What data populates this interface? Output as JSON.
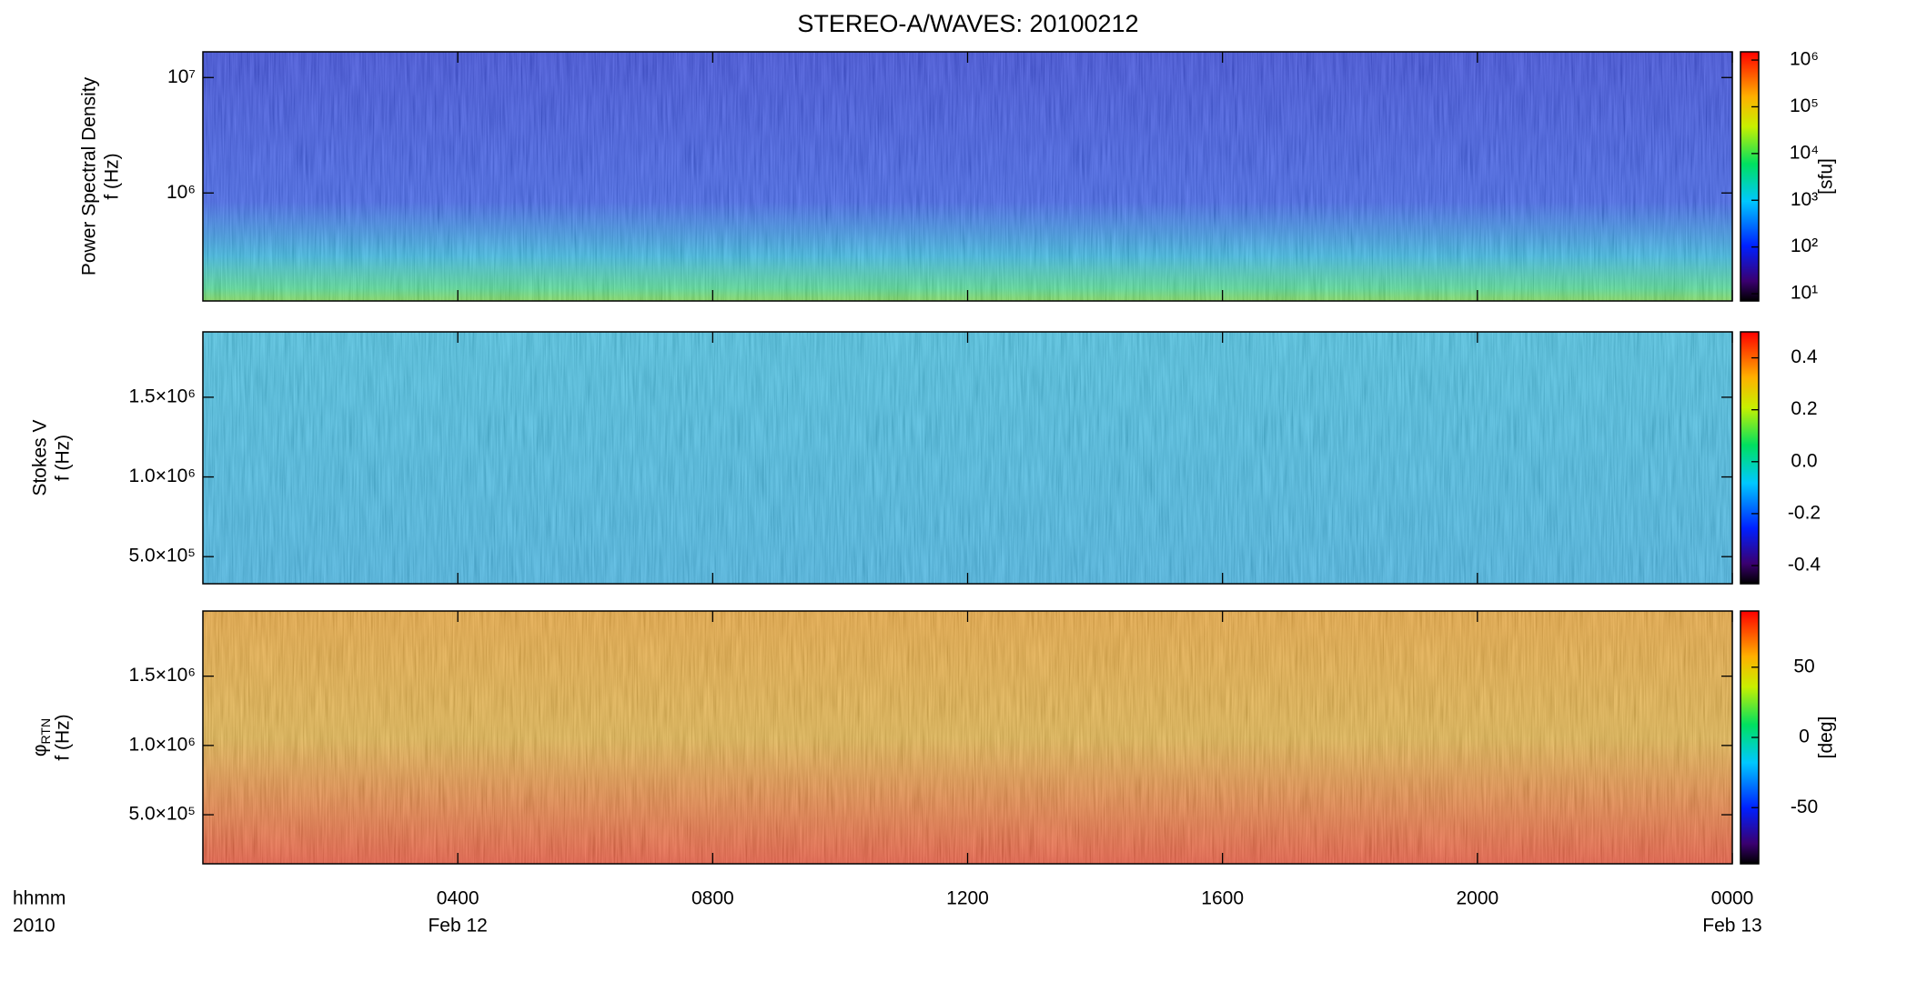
{
  "chart_data": {
    "type": "spectrogram",
    "title": "STEREO-A/WAVES: 20100212",
    "colormap": "rainbow",
    "xlim": [
      0,
      24
    ],
    "xticks": [
      {
        "value": 4,
        "label": "0400"
      },
      {
        "value": 8,
        "label": "0800"
      },
      {
        "value": 12,
        "label": "1200"
      },
      {
        "value": 16,
        "label": "1600"
      },
      {
        "value": 20,
        "label": "2000"
      },
      {
        "value": 24,
        "label": "0000"
      }
    ],
    "xdate_labels": [
      {
        "value": 4,
        "label": "Feb 12"
      },
      {
        "value": 24,
        "label": "Feb 13"
      }
    ],
    "xrow_labels": [
      "hhmm",
      "2010"
    ],
    "panels": [
      {
        "ylabel": [
          "Power Spectral Density",
          "f (Hz)"
        ],
        "ylog": true,
        "ylim": [
          116000,
          16700000
        ],
        "yticks": [
          {
            "value": 1000000,
            "label": "10⁶"
          },
          {
            "value": 10000000,
            "label": "10⁷"
          }
        ],
        "colorbar": {
          "label": "[sfu]",
          "log": true,
          "lim": [
            7,
            1500000
          ],
          "ticks": [
            {
              "value": 10,
              "label": "10¹"
            },
            {
              "value": 100,
              "label": "10²"
            },
            {
              "value": 1000,
              "label": "10³"
            },
            {
              "value": 10000,
              "label": "10⁴"
            },
            {
              "value": 100000,
              "label": "10⁵"
            },
            {
              "value": 1000000,
              "label": "10⁶"
            }
          ]
        }
      },
      {
        "ylabel": [
          "Stokes V",
          "f (Hz)"
        ],
        "ylog": false,
        "ylim": [
          330000,
          1910000
        ],
        "yticks": [
          {
            "value": 500000,
            "label": "5.0×10⁵"
          },
          {
            "value": 1000000,
            "label": "1.0×10⁶"
          },
          {
            "value": 1500000,
            "label": "1.5×10⁶"
          }
        ],
        "colorbar": {
          "log": false,
          "lim": [
            -0.47,
            0.5
          ],
          "ticks": [
            {
              "value": -0.4,
              "label": "-0.4"
            },
            {
              "value": -0.2,
              "label": "-0.2"
            },
            {
              "value": 0,
              "label": "0.0"
            },
            {
              "value": 0.2,
              "label": "0.2"
            },
            {
              "value": 0.4,
              "label": "0.4"
            }
          ]
        }
      },
      {
        "ylabel": [
          "φ",
          "f (Hz)"
        ],
        "ylabel_subscript": "RTN",
        "ylog": false,
        "ylim": [
          146000,
          1970000
        ],
        "yticks": [
          {
            "value": 500000,
            "label": "5.0×10⁵"
          },
          {
            "value": 1000000,
            "label": "1.0×10⁶"
          },
          {
            "value": 1500000,
            "label": "1.5×10⁶"
          }
        ],
        "colorbar": {
          "label": "[deg]",
          "log": false,
          "lim": [
            -90,
            90
          ],
          "ticks": [
            -50,
            0,
            50
          ]
        }
      }
    ]
  }
}
